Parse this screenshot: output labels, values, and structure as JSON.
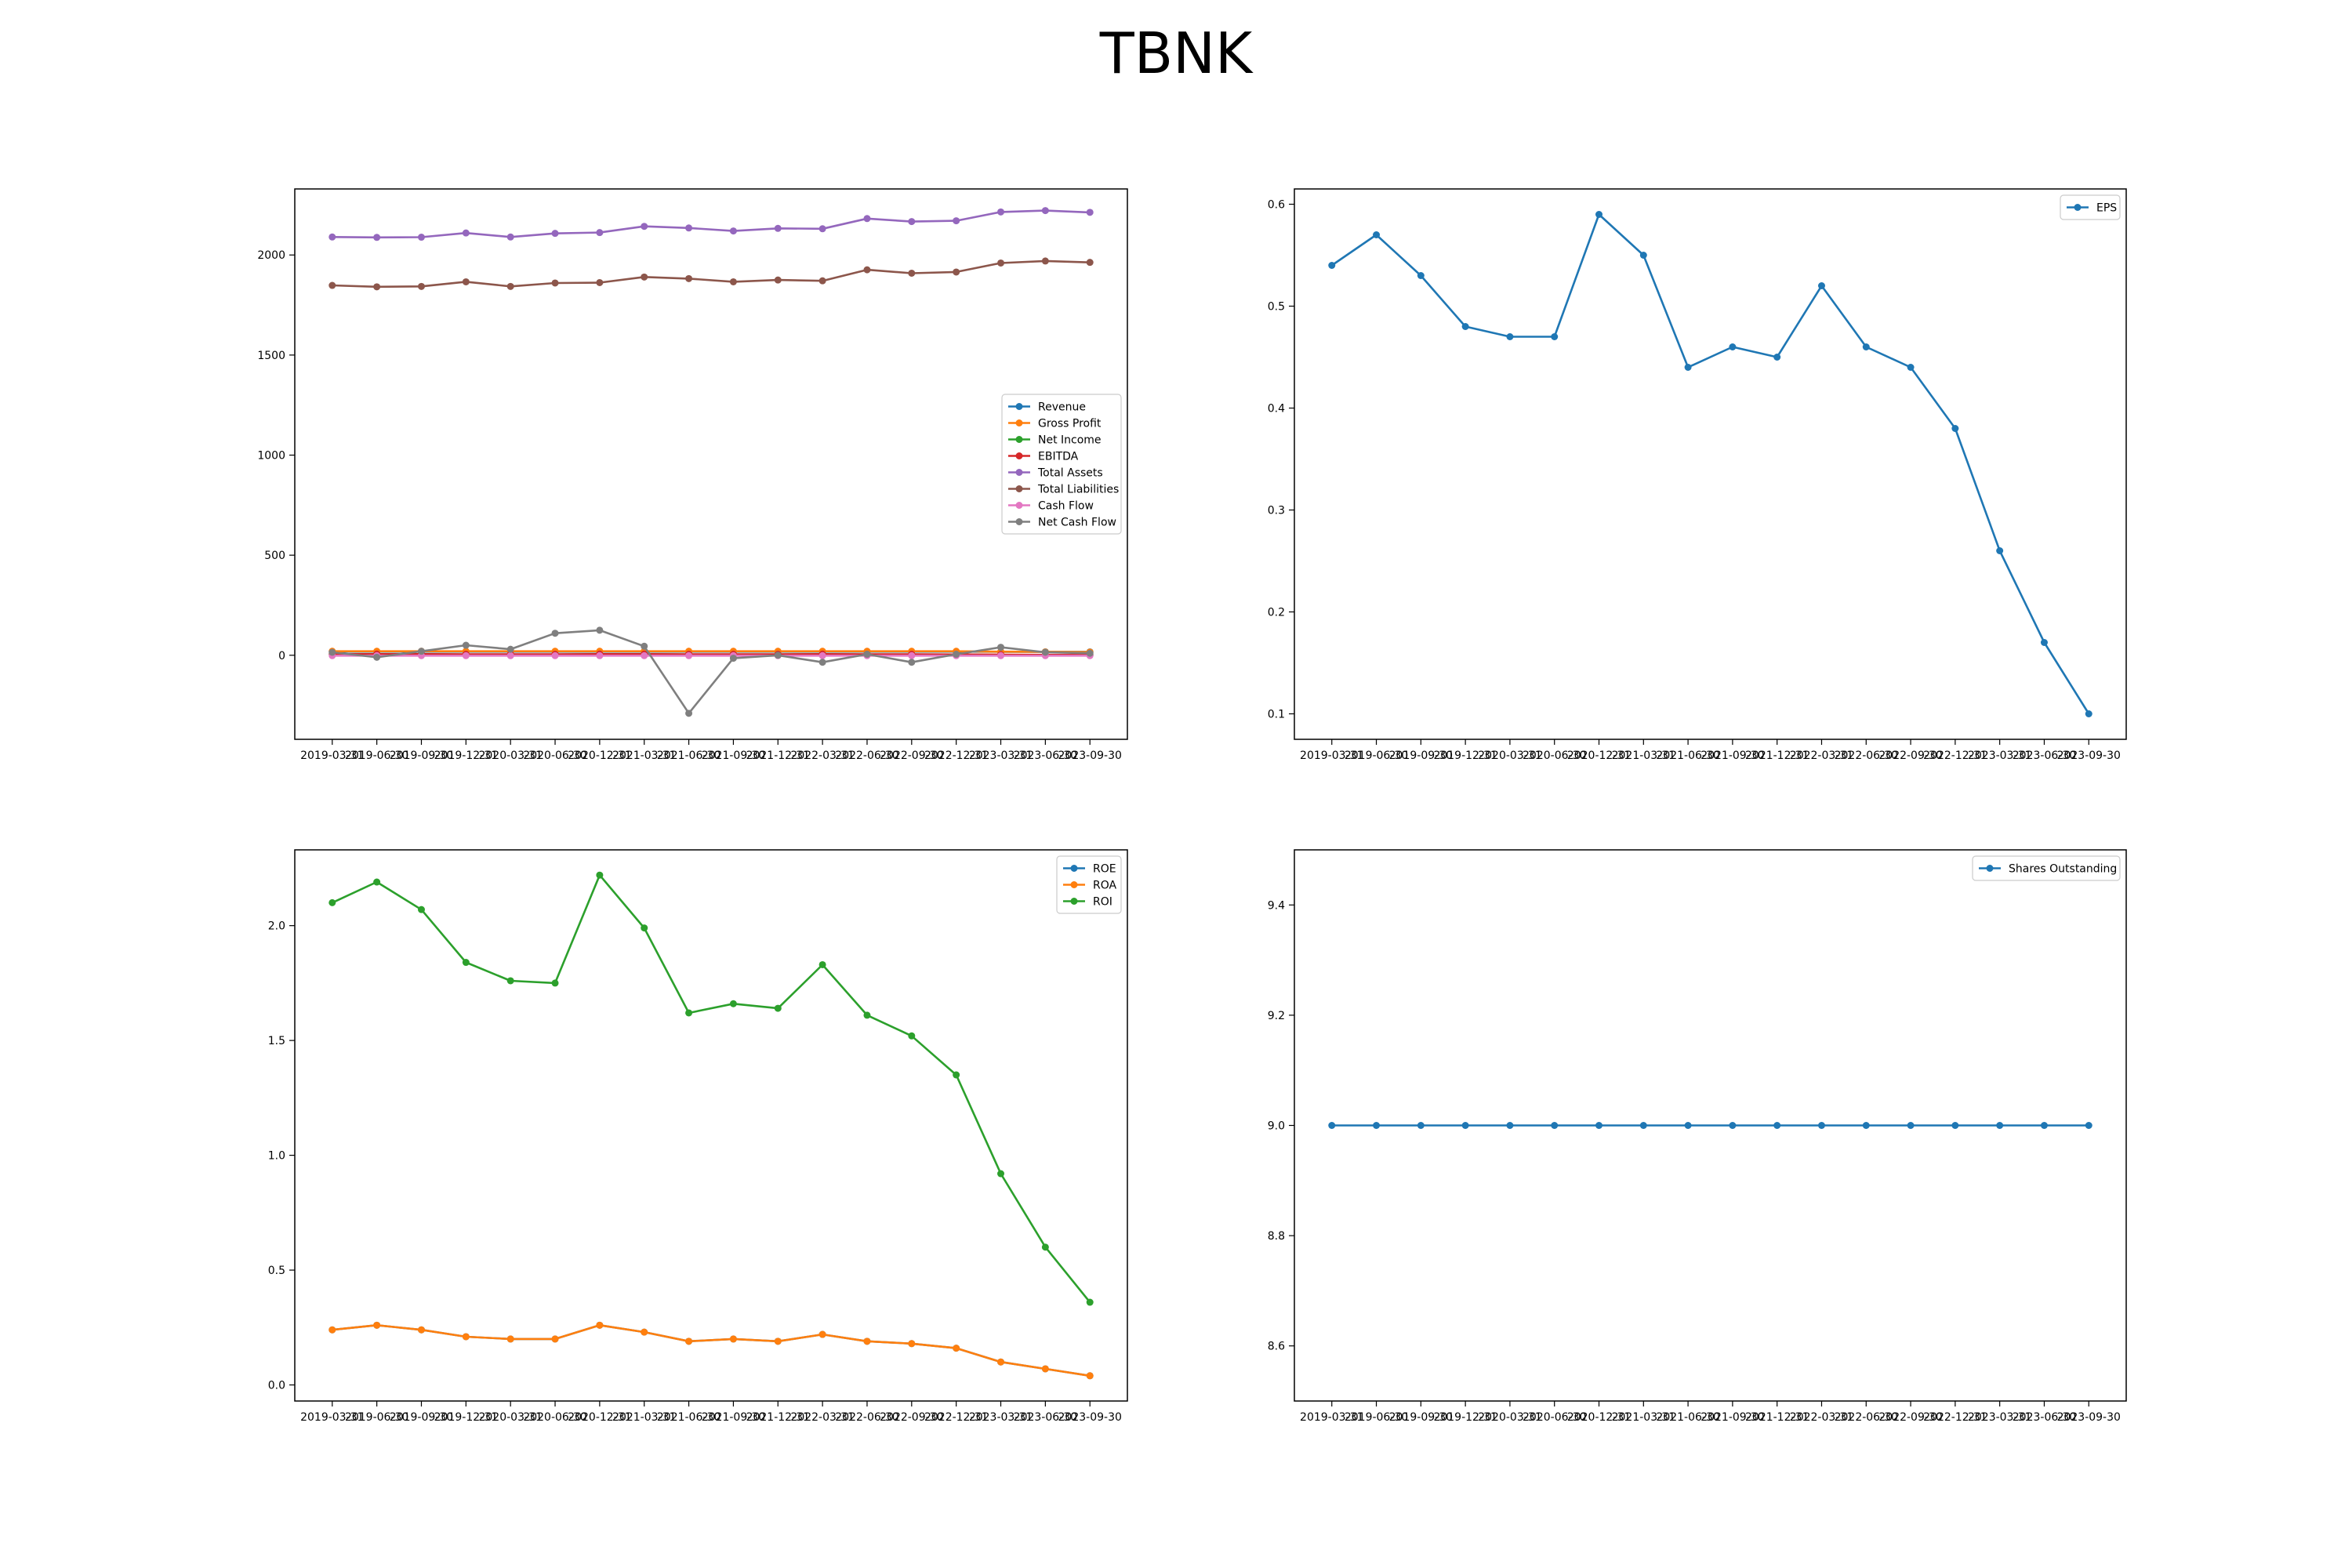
{
  "figure": {
    "title": "TBNK"
  },
  "colors": {
    "Revenue": "#1f77b4",
    "Gross Profit": "#ff7f0e",
    "Net Income": "#2ca02c",
    "EBITDA": "#d62728",
    "Total Assets": "#9467bd",
    "Total Liabilities": "#8c564b",
    "Cash Flow": "#e377c2",
    "Net Cash Flow": "#7f7f7f",
    "EPS": "#1f77b4",
    "ROE": "#1f77b4",
    "ROA": "#ff7f0e",
    "ROI": "#2ca02c",
    "Shares Outstanding": "#1f77b4"
  },
  "chart_data": [
    {
      "type": "line",
      "x": [
        "2019-03-31",
        "2019-06-30",
        "2019-09-30",
        "2019-12-31",
        "2020-03-31",
        "2020-06-30",
        "2020-12-31",
        "2021-03-31",
        "2021-06-30",
        "2021-09-30",
        "2021-12-31",
        "2022-03-31",
        "2022-06-30",
        "2022-09-30",
        "2022-12-31",
        "2023-03-31",
        "2023-06-30",
        "2023-09-30"
      ],
      "ylim": [
        -420,
        2330
      ],
      "yticks": [
        0,
        500,
        1000,
        1500,
        2000
      ],
      "legend_position": "center-right",
      "series": [
        {
          "name": "Revenue",
          "values": [
            18,
            18,
            18,
            18,
            18,
            18,
            18,
            18,
            18,
            18,
            18,
            18,
            18,
            18,
            18,
            17,
            17,
            17
          ]
        },
        {
          "name": "Gross Profit",
          "values": [
            20,
            20,
            20,
            20,
            20,
            20,
            20,
            20,
            20,
            20,
            20,
            20,
            20,
            20,
            20,
            18,
            17,
            16
          ]
        },
        {
          "name": "Net Income",
          "values": [
            5,
            5,
            5,
            4,
            4,
            4,
            5,
            5,
            4,
            4,
            4,
            5,
            4,
            4,
            3,
            2,
            2,
            1
          ]
        },
        {
          "name": "EBITDA",
          "values": [
            6,
            6,
            6,
            5,
            5,
            5,
            6,
            6,
            5,
            5,
            5,
            6,
            5,
            5,
            4,
            3,
            2,
            2
          ]
        },
        {
          "name": "Total Assets",
          "values": [
            2090,
            2088,
            2089,
            2110,
            2090,
            2108,
            2112,
            2143,
            2135,
            2120,
            2133,
            2131,
            2182,
            2167,
            2171,
            2215,
            2222,
            2213
          ]
        },
        {
          "name": "Total Liabilities",
          "values": [
            1848,
            1841,
            1843,
            1866,
            1843,
            1860,
            1862,
            1890,
            1882,
            1866,
            1875,
            1871,
            1926,
            1909,
            1915,
            1960,
            1970,
            1963
          ]
        },
        {
          "name": "Cash Flow",
          "values": [
            -2,
            -2,
            -2,
            -2,
            -2,
            -2,
            -2,
            -2,
            -2,
            -2,
            -2,
            -2,
            -2,
            -2,
            -2,
            -2,
            -2,
            -2
          ]
        },
        {
          "name": "Net Cash Flow",
          "values": [
            15,
            -10,
            20,
            50,
            30,
            110,
            125,
            45,
            -290,
            -15,
            0,
            -35,
            5,
            -35,
            5,
            40,
            15,
            10
          ]
        }
      ]
    },
    {
      "type": "line",
      "x": [
        "2019-03-31",
        "2019-06-30",
        "2019-09-30",
        "2019-12-31",
        "2020-03-31",
        "2020-06-30",
        "2020-12-31",
        "2021-03-31",
        "2021-06-30",
        "2021-09-30",
        "2021-12-31",
        "2022-03-31",
        "2022-06-30",
        "2022-09-30",
        "2022-12-31",
        "2023-03-31",
        "2023-06-30",
        "2023-09-30"
      ],
      "ylim": [
        0.075,
        0.615
      ],
      "yticks": [
        0.1,
        0.2,
        0.3,
        0.4,
        0.5,
        0.6
      ],
      "legend_position": "top-right",
      "series": [
        {
          "name": "EPS",
          "values": [
            0.54,
            0.57,
            0.53,
            0.48,
            0.47,
            0.47,
            0.59,
            0.55,
            0.44,
            0.46,
            0.45,
            0.52,
            0.46,
            0.44,
            0.38,
            0.26,
            0.17,
            0.1
          ]
        }
      ]
    },
    {
      "type": "line",
      "x": [
        "2019-03-31",
        "2019-06-30",
        "2019-09-30",
        "2019-12-31",
        "2020-03-31",
        "2020-06-30",
        "2020-12-31",
        "2021-03-31",
        "2021-06-30",
        "2021-09-30",
        "2021-12-31",
        "2022-03-31",
        "2022-06-30",
        "2022-09-30",
        "2022-12-31",
        "2023-03-31",
        "2023-06-30",
        "2023-09-30"
      ],
      "ylim": [
        -0.07,
        2.33
      ],
      "yticks": [
        0.0,
        0.5,
        1.0,
        1.5,
        2.0
      ],
      "legend_position": "top-right",
      "series": [
        {
          "name": "ROE",
          "values": [
            0.24,
            0.26,
            0.24,
            0.21,
            0.2,
            0.2,
            0.26,
            0.23,
            0.19,
            0.2,
            0.19,
            0.22,
            0.19,
            0.18,
            0.16,
            0.1,
            0.07,
            0.04
          ]
        },
        {
          "name": "ROA",
          "values": [
            0.24,
            0.26,
            0.24,
            0.21,
            0.2,
            0.2,
            0.26,
            0.23,
            0.19,
            0.2,
            0.19,
            0.22,
            0.19,
            0.18,
            0.16,
            0.1,
            0.07,
            0.04
          ]
        },
        {
          "name": "ROI",
          "values": [
            2.1,
            2.19,
            2.07,
            1.84,
            1.76,
            1.75,
            2.22,
            1.99,
            1.62,
            1.66,
            1.64,
            1.83,
            1.61,
            1.52,
            1.35,
            0.92,
            0.6,
            0.36
          ]
        }
      ]
    },
    {
      "type": "line",
      "x": [
        "2019-03-31",
        "2019-06-30",
        "2019-09-30",
        "2019-12-31",
        "2020-03-31",
        "2020-06-30",
        "2020-12-31",
        "2021-03-31",
        "2021-06-30",
        "2021-09-30",
        "2021-12-31",
        "2022-03-31",
        "2022-06-30",
        "2022-09-30",
        "2022-12-31",
        "2023-03-31",
        "2023-06-30",
        "2023-09-30"
      ],
      "ylim": [
        8.5,
        9.5
      ],
      "yticks": [
        8.6,
        8.8,
        9.0,
        9.2,
        9.4
      ],
      "legend_position": "top-right",
      "series": [
        {
          "name": "Shares Outstanding",
          "values": [
            9,
            9,
            9,
            9,
            9,
            9,
            9,
            9,
            9,
            9,
            9,
            9,
            9,
            9,
            9,
            9,
            9,
            9
          ]
        }
      ]
    }
  ]
}
